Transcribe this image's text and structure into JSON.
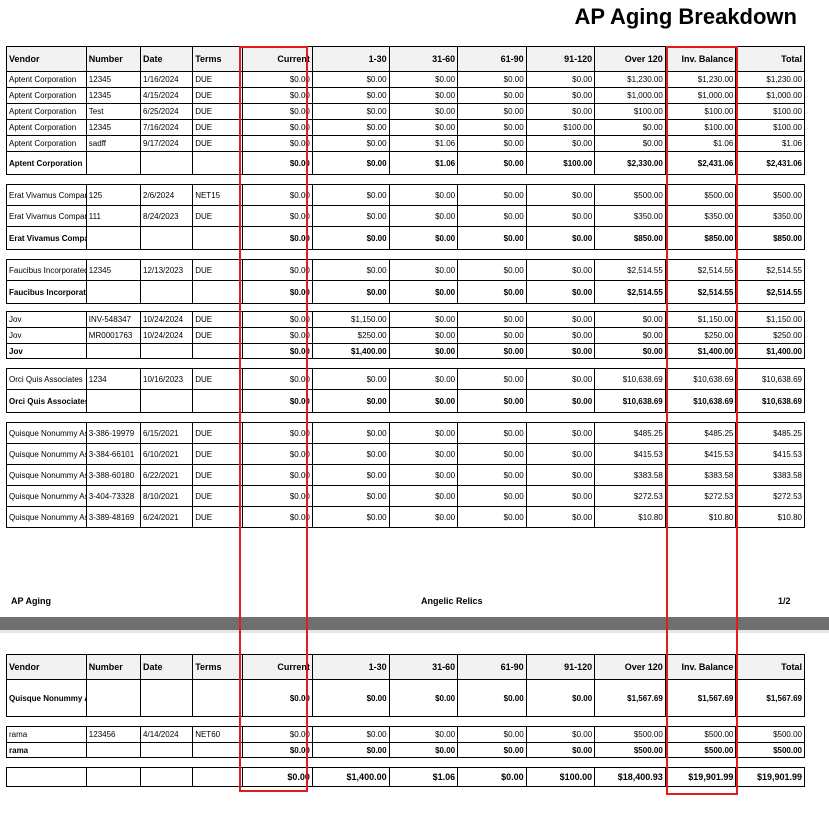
{
  "report": {
    "title": "AP Aging Breakdown",
    "footer_left": "AP Aging",
    "footer_center": "Angelic Relics",
    "footer_right": "1/2"
  },
  "columns": [
    "Vendor",
    "Number",
    "Date",
    "Terms",
    "Current",
    "1-30",
    "31-60",
    "61-90",
    "91-120",
    "Over 120",
    "Inv. Balance",
    "Total"
  ],
  "highlight_color": "#e01e1e",
  "page1_groups": [
    {
      "rows": [
        [
          "Aptent Corporation",
          "12345",
          "1/16/2024",
          "DUE",
          "$0.00",
          "$0.00",
          "$0.00",
          "$0.00",
          "$0.00",
          "$1,230.00",
          "$1,230.00",
          "$1,230.00"
        ],
        [
          "Aptent Corporation",
          "12345",
          "4/15/2024",
          "DUE",
          "$0.00",
          "$0.00",
          "$0.00",
          "$0.00",
          "$0.00",
          "$1,000.00",
          "$1,000.00",
          "$1,000.00"
        ],
        [
          "Aptent Corporation",
          "Test",
          "6/25/2024",
          "DUE",
          "$0.00",
          "$0.00",
          "$0.00",
          "$0.00",
          "$0.00",
          "$100.00",
          "$100.00",
          "$100.00"
        ],
        [
          "Aptent Corporation",
          "12345",
          "7/16/2024",
          "DUE",
          "$0.00",
          "$0.00",
          "$0.00",
          "$0.00",
          "$100.00",
          "$0.00",
          "$100.00",
          "$100.00"
        ],
        [
          "Aptent Corporation",
          "sadff",
          "9/17/2024",
          "DUE",
          "$0.00",
          "$0.00",
          "$1.06",
          "$0.00",
          "$0.00",
          "$0.00",
          "$1.06",
          "$1.06"
        ]
      ],
      "total": [
        "Aptent Corporation",
        "",
        "",
        "",
        "$0.00",
        "$0.00",
        "$1.06",
        "$0.00",
        "$100.00",
        "$2,330.00",
        "$2,431.06",
        "$2,431.06"
      ]
    },
    {
      "rows": [
        [
          "Erat Vivamus Company",
          "125",
          "2/6/2024",
          "NET15",
          "$0.00",
          "$0.00",
          "$0.00",
          "$0.00",
          "$0.00",
          "$500.00",
          "$500.00",
          "$500.00"
        ],
        [
          "Erat Vivamus Company",
          "111",
          "8/24/2023",
          "DUE",
          "$0.00",
          "$0.00",
          "$0.00",
          "$0.00",
          "$0.00",
          "$350.00",
          "$350.00",
          "$350.00"
        ]
      ],
      "total": [
        "Erat Vivamus Company",
        "",
        "",
        "",
        "$0.00",
        "$0.00",
        "$0.00",
        "$0.00",
        "$0.00",
        "$850.00",
        "$850.00",
        "$850.00"
      ]
    },
    {
      "rows": [
        [
          "Faucibus Incorporated",
          "12345",
          "12/13/2023",
          "DUE",
          "$0.00",
          "$0.00",
          "$0.00",
          "$0.00",
          "$0.00",
          "$2,514.55",
          "$2,514.55",
          "$2,514.55"
        ]
      ],
      "total": [
        "Faucibus Incorporated",
        "",
        "",
        "",
        "$0.00",
        "$0.00",
        "$0.00",
        "$0.00",
        "$0.00",
        "$2,514.55",
        "$2,514.55",
        "$2,514.55"
      ]
    },
    {
      "rows": [
        [
          "Jov",
          "INV-548347",
          "10/24/2024",
          "DUE",
          "$0.00",
          "$1,150.00",
          "$0.00",
          "$0.00",
          "$0.00",
          "$0.00",
          "$1,150.00",
          "$1,150.00"
        ],
        [
          "Jov",
          "MR0001763",
          "10/24/2024",
          "DUE",
          "$0.00",
          "$250.00",
          "$0.00",
          "$0.00",
          "$0.00",
          "$0.00",
          "$250.00",
          "$250.00"
        ]
      ],
      "total": [
        "Jov",
        "",
        "",
        "",
        "$0.00",
        "$1,400.00",
        "$0.00",
        "$0.00",
        "$0.00",
        "$0.00",
        "$1,400.00",
        "$1,400.00"
      ]
    },
    {
      "rows": [
        [
          "Orci Quis Associates",
          "1234",
          "10/16/2023",
          "DUE",
          "$0.00",
          "$0.00",
          "$0.00",
          "$0.00",
          "$0.00",
          "$10,638.69",
          "$10,638.69",
          "$10,638.69"
        ]
      ],
      "total": [
        "Orci Quis Associates",
        "",
        "",
        "",
        "$0.00",
        "$0.00",
        "$0.00",
        "$0.00",
        "$0.00",
        "$10,638.69",
        "$10,638.69",
        "$10,638.69"
      ]
    },
    {
      "rows": [
        [
          "Quisque Nonummy Associates",
          "3-386-19979",
          "6/15/2021",
          "DUE",
          "$0.00",
          "$0.00",
          "$0.00",
          "$0.00",
          "$0.00",
          "$485.25",
          "$485.25",
          "$485.25"
        ],
        [
          "Quisque Nonummy Associates",
          "3-384-66101",
          "6/10/2021",
          "DUE",
          "$0.00",
          "$0.00",
          "$0.00",
          "$0.00",
          "$0.00",
          "$415.53",
          "$415.53",
          "$415.53"
        ],
        [
          "Quisque Nonummy Associates",
          "3-388-60180",
          "6/22/2021",
          "DUE",
          "$0.00",
          "$0.00",
          "$0.00",
          "$0.00",
          "$0.00",
          "$383.58",
          "$383.58",
          "$383.58"
        ],
        [
          "Quisque Nonummy Associates",
          "3-404-73328",
          "8/10/2021",
          "DUE",
          "$0.00",
          "$0.00",
          "$0.00",
          "$0.00",
          "$0.00",
          "$272.53",
          "$272.53",
          "$272.53"
        ],
        [
          "Quisque Nonummy Associates",
          "3-389-48169",
          "6/24/2021",
          "DUE",
          "$0.00",
          "$0.00",
          "$0.00",
          "$0.00",
          "$0.00",
          "$10.80",
          "$10.80",
          "$10.80"
        ]
      ]
    }
  ],
  "page2": {
    "carry_total": [
      "Quisque Nonummy Associates",
      "",
      "",
      "",
      "$0.00",
      "$0.00",
      "$0.00",
      "$0.00",
      "$0.00",
      "$1,567.69",
      "$1,567.69",
      "$1,567.69"
    ],
    "rama_rows": [
      [
        "rama",
        "123456",
        "4/14/2024",
        "NET60",
        "$0.00",
        "$0.00",
        "$0.00",
        "$0.00",
        "$0.00",
        "$500.00",
        "$500.00",
        "$500.00"
      ]
    ],
    "rama_total": [
      "rama",
      "",
      "",
      "",
      "$0.00",
      "$0.00",
      "$0.00",
      "$0.00",
      "$0.00",
      "$500.00",
      "$500.00",
      "$500.00"
    ],
    "grand_total": [
      "",
      "",
      "",
      "",
      "$0.00",
      "$1,400.00",
      "$1.06",
      "$0.00",
      "$100.00",
      "$18,400.93",
      "$19,901.99",
      "$19,901.99"
    ]
  }
}
